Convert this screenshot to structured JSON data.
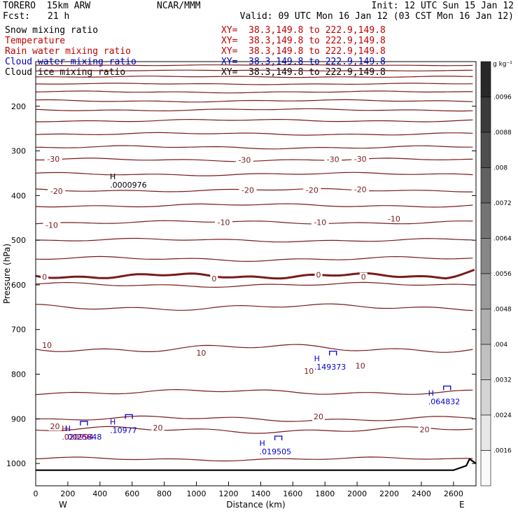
{
  "header": {
    "model": "TORERO  15km ARW",
    "center": "NCAR/MMM",
    "init": "Init: 12 UTC Sun 15 Jan 12",
    "fcst_label": "Fcst:",
    "fcst_value": "21 h",
    "valid": "Valid: 09 UTC Mon 16 Jan 12 (03 CST Mon 16 Jan 12)",
    "fields": [
      {
        "name": "Snow mixing ratio",
        "xy": "XY=  38.3,149.8 to 222.9,149.8",
        "color": "#000000",
        "xy_color": "#c00000"
      },
      {
        "name": "Temperature",
        "xy": "XY=  38.3,149.8 to 222.9,149.8",
        "color": "#c00000",
        "xy_color": "#c00000"
      },
      {
        "name": "Rain water mixing ratio",
        "xy": "XY=  38.3,149.8 to 222.9,149.8",
        "color": "#c00000",
        "xy_color": "#c00000"
      },
      {
        "name": "Cloud water mixing ratio",
        "xy": "XY=  38.3,149.8 to 222.9,149.8",
        "color": "#0000c0",
        "xy_color": "#0000c0"
      },
      {
        "name": "Cloud ice mixing ratio",
        "xy": "XY=  38.3,149.8 to 222.9,149.8",
        "color": "#000000",
        "xy_color": "#000000"
      }
    ]
  },
  "colors": {
    "temperature": "#7a1a1a",
    "cloud_water": "#0000cc",
    "snow": "#000000",
    "terrain": "#000000"
  },
  "chart_data": {
    "type": "line",
    "xlabel": "Distance (km)",
    "ylabel": "Pressure (hPa)",
    "x_ticks": [
      0,
      200,
      400,
      600,
      800,
      1000,
      1200,
      1400,
      1600,
      1800,
      2000,
      2200,
      2400,
      2600
    ],
    "xlim": [
      0,
      2740
    ],
    "y_ticks": [
      200,
      300,
      400,
      500,
      600,
      700,
      800,
      900,
      1000
    ],
    "ylim": [
      100,
      1050
    ],
    "x_left_label": "W",
    "x_right_label": "E",
    "colorbar": {
      "unit": "g kg⁻¹",
      "ticks": [
        ".0096",
        ".0088",
        ".008",
        ".0072",
        ".0064",
        ".0056",
        ".0048",
        ".004",
        ".0032",
        ".0024",
        ".0016"
      ]
    },
    "temperature_contour_labels": [
      {
        "text": "-30",
        "x": 110,
        "p": 318
      },
      {
        "text": "-30",
        "x": 1300,
        "p": 320
      },
      {
        "text": "-30",
        "x": 1850,
        "p": 319
      },
      {
        "text": "-30",
        "x": 2020,
        "p": 318
      },
      {
        "text": "-20",
        "x": 130,
        "p": 390
      },
      {
        "text": "-20",
        "x": 1320,
        "p": 388
      },
      {
        "text": "-20",
        "x": 1720,
        "p": 388
      },
      {
        "text": "-20",
        "x": 2020,
        "p": 386
      },
      {
        "text": "-10",
        "x": 100,
        "p": 466
      },
      {
        "text": "-10",
        "x": 1170,
        "p": 460
      },
      {
        "text": "-10",
        "x": 1770,
        "p": 460
      },
      {
        "text": "-10",
        "x": 2230,
        "p": 452
      },
      {
        "text": "0",
        "x": 55,
        "p": 582
      },
      {
        "text": "0",
        "x": 1110,
        "p": 586
      },
      {
        "text": "0",
        "x": 1760,
        "p": 577
      },
      {
        "text": "0",
        "x": 2040,
        "p": 582
      },
      {
        "text": "10",
        "x": 70,
        "p": 735
      },
      {
        "text": "10",
        "x": 1030,
        "p": 752
      },
      {
        "text": "10",
        "x": 1700,
        "p": 793
      },
      {
        "text": "10",
        "x": 2020,
        "p": 781
      },
      {
        "text": "20",
        "x": 120,
        "p": 917
      },
      {
        "text": "20",
        "x": 760,
        "p": 920
      },
      {
        "text": "20",
        "x": 1760,
        "p": 895
      },
      {
        "text": "20",
        "x": 2420,
        "p": 924
      }
    ],
    "max_markers": [
      {
        "mark": "H",
        "value": ".0000976",
        "x": 480,
        "p": 373,
        "field": "snow"
      },
      {
        "mark": "H",
        "value": ".149373",
        "x": 1750,
        "p": 780,
        "field": "cloud_water"
      },
      {
        "mark": "H",
        "value": ".064832",
        "x": 2460,
        "p": 858,
        "field": "cloud_water"
      },
      {
        "mark": "H",
        "value": ".10977",
        "x": 480,
        "p": 922,
        "field": "cloud_water"
      },
      {
        "mark": "H",
        "value": ".019505",
        "x": 1410,
        "p": 970,
        "field": "cloud_water"
      },
      {
        "mark": "H",
        "value": ".020994",
        "x": 180,
        "p": 937,
        "field": "rain"
      },
      {
        "mark": "H",
        "value": ".0025848",
        "x": 200,
        "p": 937,
        "field": "cloud_water"
      }
    ]
  }
}
